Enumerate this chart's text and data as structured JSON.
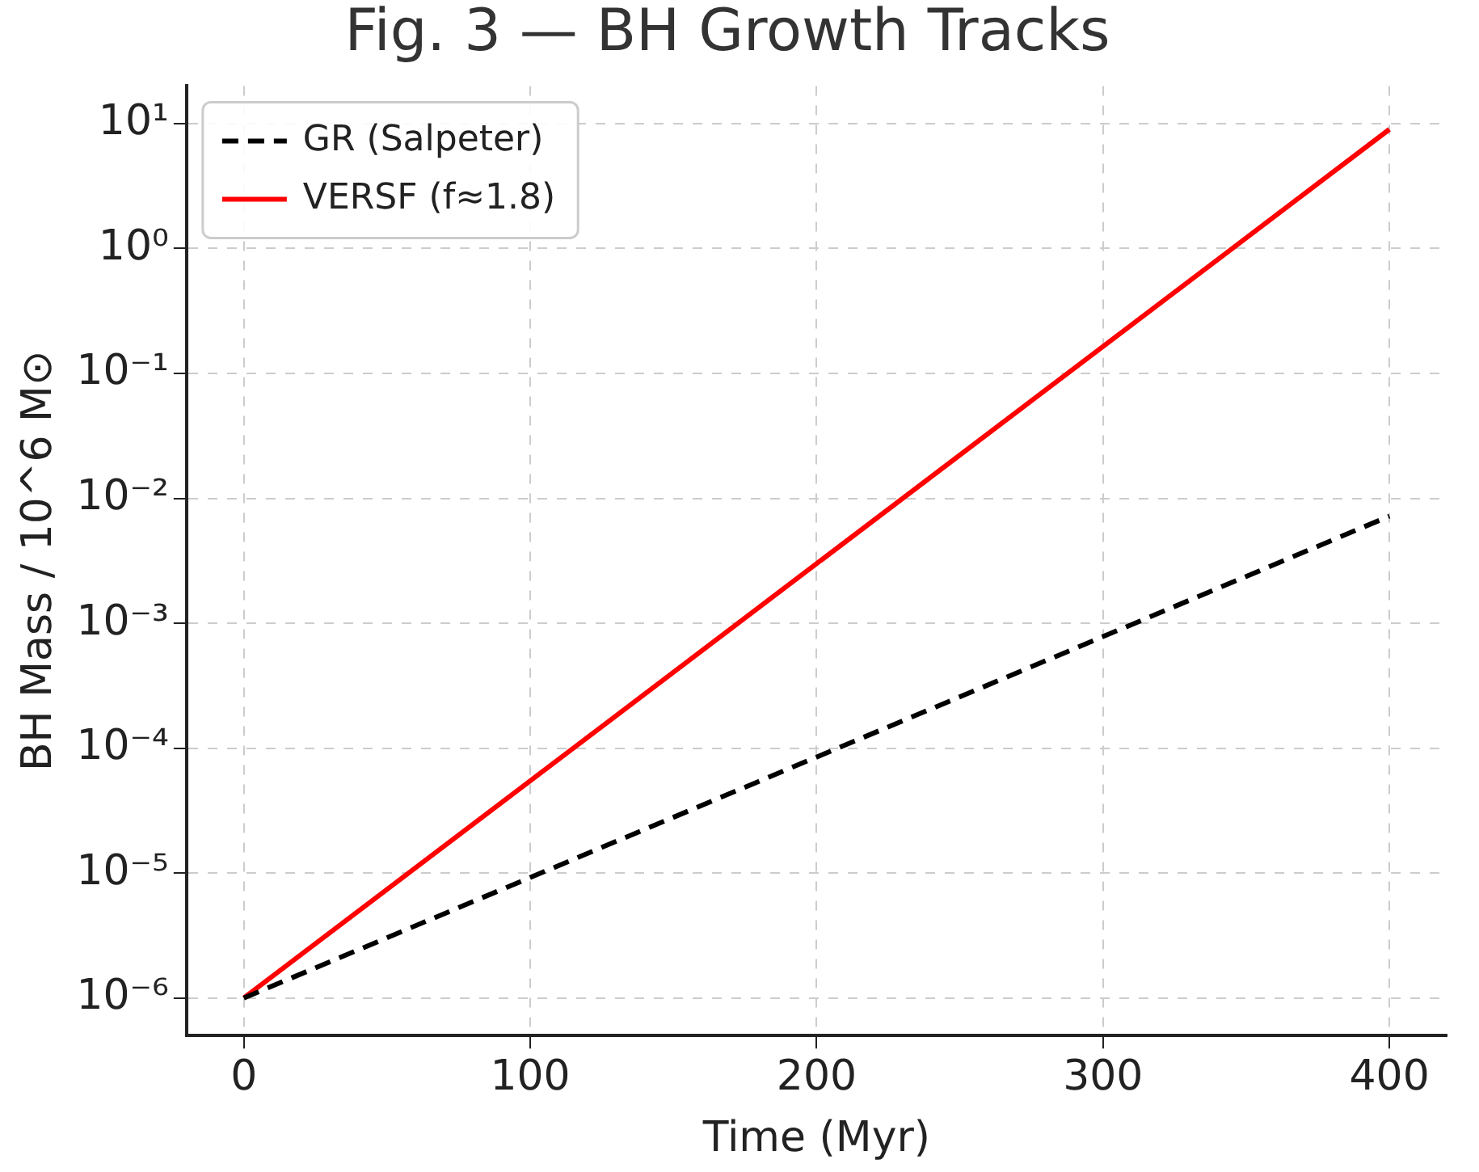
{
  "chart_data": {
    "type": "line",
    "title": "Fig. 3 — BH Growth Tracks",
    "xlabel": "Time (Myr)",
    "ylabel": "BH Mass / 10^6 M⊙",
    "log": "y",
    "grid": true,
    "legend": "top left",
    "marker": "none",
    "xlim": [
      -20,
      420
    ],
    "xticks": [
      0,
      100,
      200,
      300,
      400
    ],
    "ylim": [
      5e-07,
      20
    ],
    "yticks": [
      {
        "value": 1e-06,
        "label": "10⁻⁶"
      },
      {
        "value": 1e-05,
        "label": "10⁻⁵"
      },
      {
        "value": 0.0001,
        "label": "10⁻⁴"
      },
      {
        "value": 0.001,
        "label": "10⁻³"
      },
      {
        "value": 0.01,
        "label": "10⁻²"
      },
      {
        "value": 0.1,
        "label": "10⁻¹"
      },
      {
        "value": 1,
        "label": "10⁰"
      },
      {
        "value": 10,
        "label": "10¹"
      }
    ],
    "x": [
      0,
      400
    ],
    "series": [
      {
        "name": "GR (Salpeter)",
        "color": "#000000",
        "line_style": "dashed",
        "values": [
          1e-06,
          0.0072
        ]
      },
      {
        "name": "VERSF (f≈1.8)",
        "color": "#ff0000",
        "line_style": "solid",
        "values": [
          1e-06,
          9
        ]
      }
    ]
  }
}
